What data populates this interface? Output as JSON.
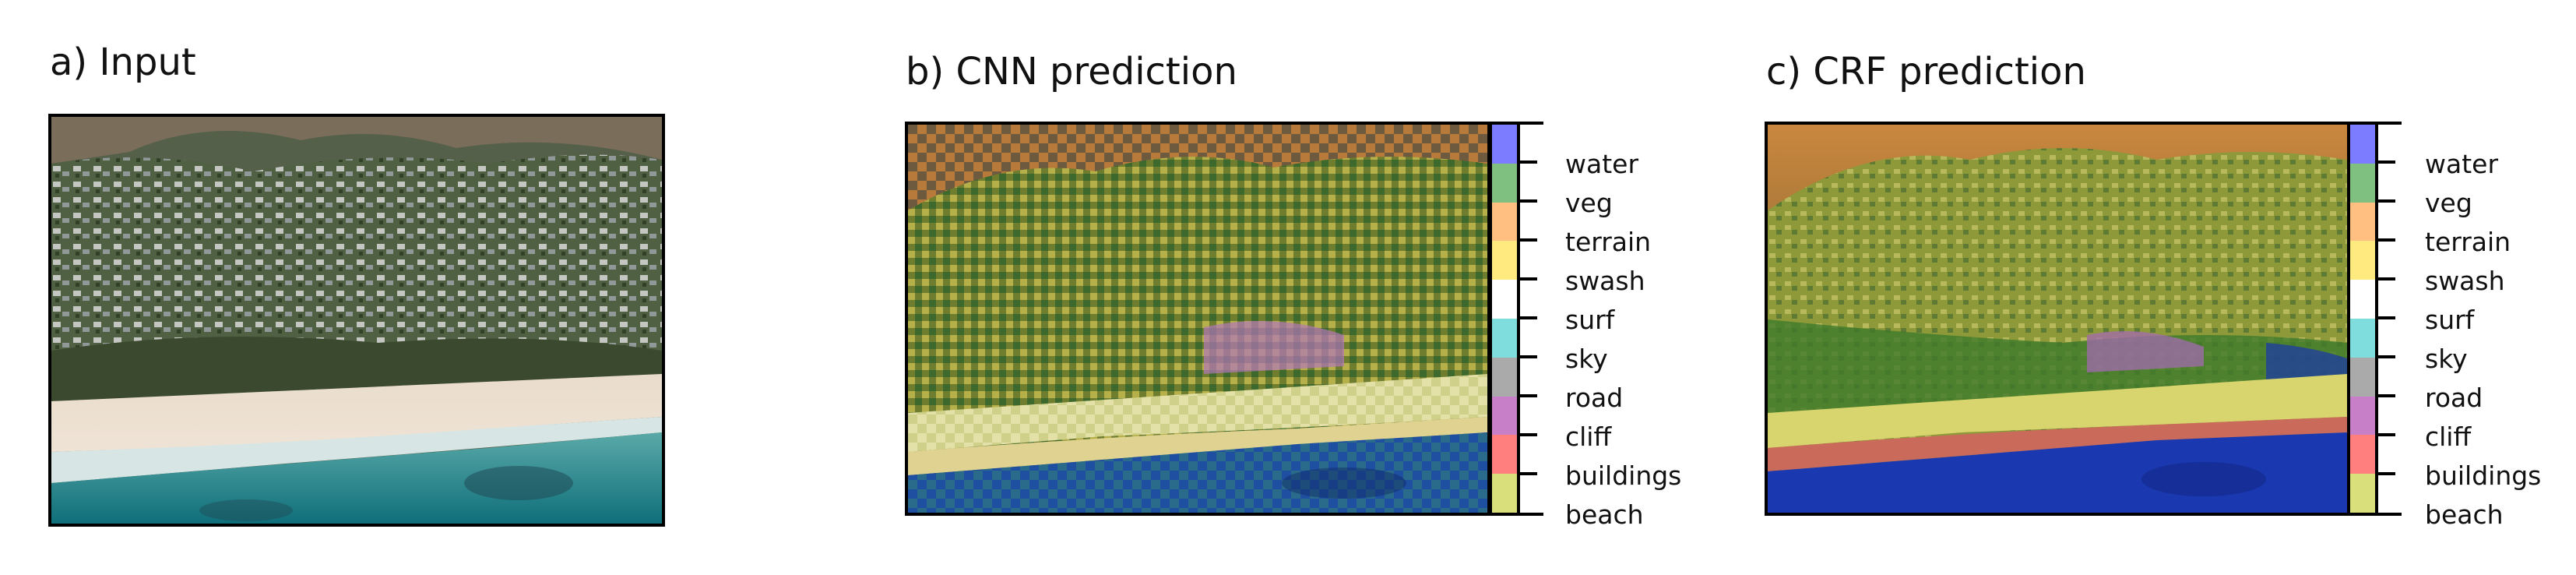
{
  "panels": {
    "input": {
      "title": "a) Input"
    },
    "cnn": {
      "title": "b) CNN prediction"
    },
    "crf": {
      "title": "c) CRF prediction"
    }
  },
  "legend": {
    "classes": [
      {
        "label": "water",
        "color": "#7b7cff"
      },
      {
        "label": "veg",
        "color": "#7fbf7f"
      },
      {
        "label": "terrain",
        "color": "#ffbf80"
      },
      {
        "label": "swash",
        "color": "#ffea80"
      },
      {
        "label": "surf",
        "color": "#ffffff"
      },
      {
        "label": "sky",
        "color": "#7fdddd"
      },
      {
        "label": "road",
        "color": "#aaaaaa"
      },
      {
        "label": "cliff",
        "color": "#c77fc7"
      },
      {
        "label": "buildings",
        "color": "#ff7f7f"
      },
      {
        "label": "beach",
        "color": "#d9df7a"
      }
    ]
  }
}
